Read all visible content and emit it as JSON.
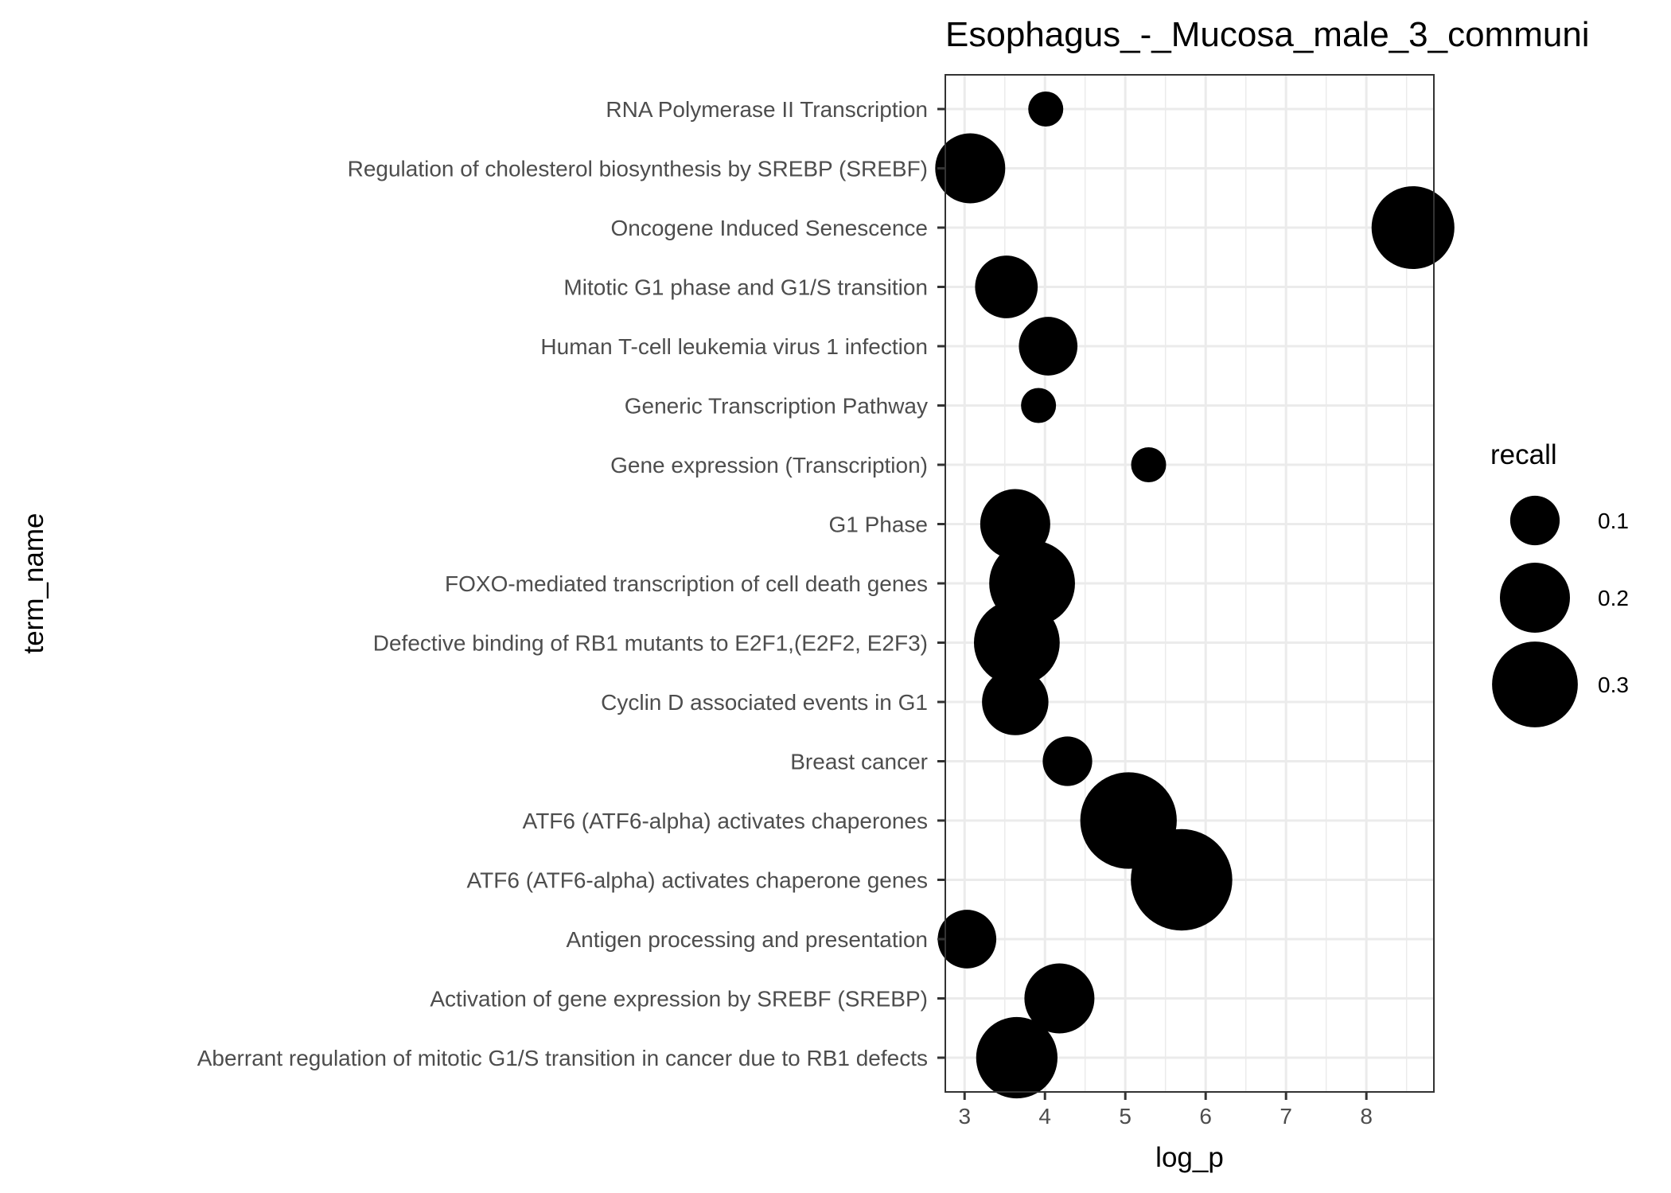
{
  "chart_data": {
    "type": "scatter",
    "title": "Esophagus_-_Mucosa_male_3_communi",
    "xlabel": "log_p",
    "ylabel": "term_name",
    "xlim": [
      2.76,
      8.84
    ],
    "x_ticks": [
      "3",
      "4",
      "5",
      "6",
      "7",
      "8"
    ],
    "x_tick_values": [
      3,
      4,
      5,
      6,
      7,
      8
    ],
    "grid": true,
    "legend": {
      "title": "recall",
      "position": "right",
      "entries": [
        {
          "label": "0.1",
          "value": 0.1
        },
        {
          "label": "0.2",
          "value": 0.2
        },
        {
          "label": "0.3",
          "value": 0.3
        }
      ]
    },
    "point_color": "#000000",
    "points": [
      {
        "term_name": "RNA Polymerase II Transcription",
        "log_p": 4.01,
        "recall": 0.05
      },
      {
        "term_name": "Regulation of cholesterol biosynthesis by SREBP (SREBF)",
        "log_p": 3.07,
        "recall": 0.2
      },
      {
        "term_name": "Oncogene Induced Senescence",
        "log_p": 8.58,
        "recall": 0.28
      },
      {
        "term_name": "Mitotic G1 phase and G1/S transition",
        "log_p": 3.52,
        "recall": 0.16
      },
      {
        "term_name": "Human T-cell leukemia virus 1 infection",
        "log_p": 4.04,
        "recall": 0.14
      },
      {
        "term_name": "Generic Transcription Pathway",
        "log_p": 3.92,
        "recall": 0.05
      },
      {
        "term_name": "Gene expression (Transcription)",
        "log_p": 5.29,
        "recall": 0.05
      },
      {
        "term_name": "G1 Phase",
        "log_p": 3.63,
        "recall": 0.2
      },
      {
        "term_name": "FOXO-mediated transcription of cell death genes",
        "log_p": 3.84,
        "recall": 0.3
      },
      {
        "term_name": "Defective binding of RB1 mutants to E2F1,(E2F2, E2F3)",
        "log_p": 3.65,
        "recall": 0.3
      },
      {
        "term_name": "Cyclin D associated events in G1",
        "log_p": 3.63,
        "recall": 0.18
      },
      {
        "term_name": "Breast cancer",
        "log_p": 4.28,
        "recall": 0.1
      },
      {
        "term_name": "ATF6 (ATF6-alpha) activates chaperones",
        "log_p": 5.04,
        "recall": 0.38
      },
      {
        "term_name": "ATF6 (ATF6-alpha) activates chaperone genes",
        "log_p": 5.7,
        "recall": 0.42
      },
      {
        "term_name": "Antigen processing and presentation",
        "log_p": 3.03,
        "recall": 0.14
      },
      {
        "term_name": "Activation of gene expression by SREBF (SREBP)",
        "log_p": 4.18,
        "recall": 0.2
      },
      {
        "term_name": "Aberrant regulation of mitotic G1/S transition in cancer due to RB1 defects",
        "log_p": 3.65,
        "recall": 0.27
      }
    ]
  }
}
